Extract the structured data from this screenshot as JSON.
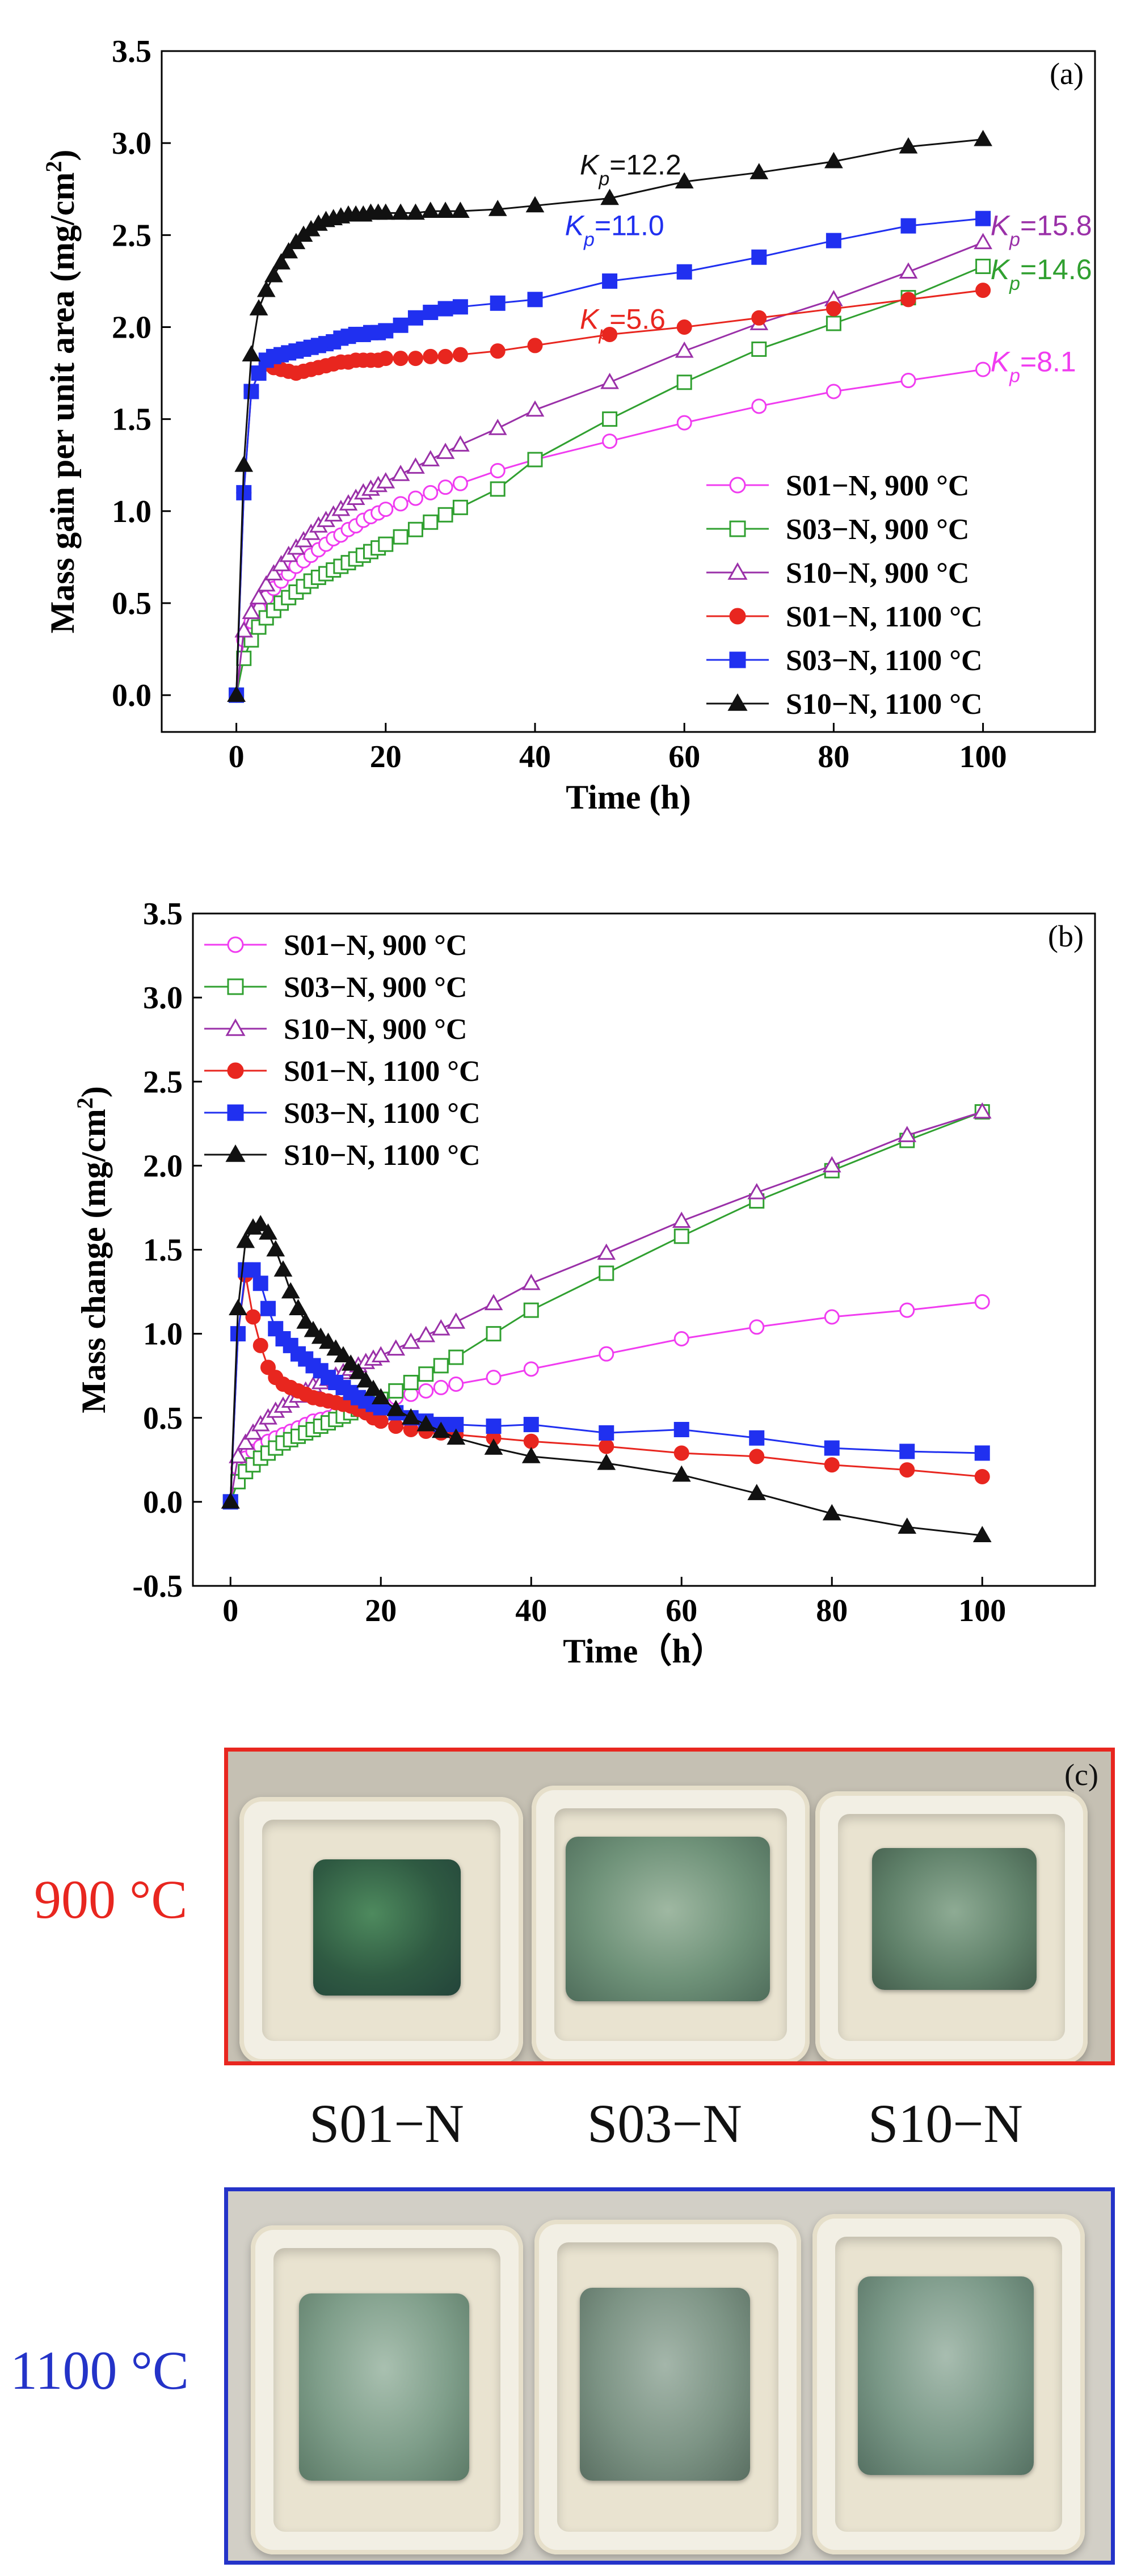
{
  "chart_data": [
    {
      "type": "line",
      "panel_label": "(a)",
      "xlabel": "Time (h)",
      "ylabel": "Mass gain per unit area (mg/cm",
      "ylabel_sup": "2",
      "ylabel_close": ")",
      "xlim": [
        -10,
        115
      ],
      "ylim": [
        -0.2,
        3.5
      ],
      "xticks": [
        "0",
        "20",
        "40",
        "60",
        "80",
        "100"
      ],
      "yticks": [
        "0.0",
        "0.5",
        "1.0",
        "1.5",
        "2.0",
        "2.5",
        "3.0",
        "3.5"
      ],
      "legend_position": "lower-right",
      "series": [
        {
          "name": "S01−N, 900 °C",
          "color": "#f03cf0",
          "marker": "circle-open",
          "x": [
            0,
            1,
            2,
            3,
            4,
            5,
            6,
            7,
            8,
            9,
            10,
            11,
            12,
            13,
            14,
            15,
            16,
            17,
            18,
            19,
            20,
            22,
            24,
            26,
            28,
            30,
            35,
            40,
            50,
            60,
            70,
            80,
            90,
            100
          ],
          "y": [
            0,
            0.3,
            0.4,
            0.47,
            0.53,
            0.58,
            0.62,
            0.66,
            0.7,
            0.73,
            0.76,
            0.79,
            0.82,
            0.85,
            0.87,
            0.9,
            0.92,
            0.95,
            0.97,
            0.99,
            1.01,
            1.04,
            1.07,
            1.1,
            1.13,
            1.15,
            1.22,
            1.28,
            1.38,
            1.48,
            1.57,
            1.65,
            1.71,
            1.77
          ]
        },
        {
          "name": "S03−N, 900 °C",
          "color": "#30a030",
          "marker": "square-open",
          "x": [
            0,
            1,
            2,
            3,
            4,
            5,
            6,
            7,
            8,
            9,
            10,
            11,
            12,
            13,
            14,
            15,
            16,
            17,
            18,
            19,
            20,
            22,
            24,
            26,
            28,
            30,
            35,
            40,
            50,
            60,
            70,
            80,
            90,
            100
          ],
          "y": [
            0,
            0.2,
            0.3,
            0.37,
            0.42,
            0.46,
            0.5,
            0.53,
            0.56,
            0.59,
            0.62,
            0.64,
            0.66,
            0.68,
            0.7,
            0.72,
            0.74,
            0.76,
            0.78,
            0.8,
            0.82,
            0.86,
            0.9,
            0.94,
            0.98,
            1.02,
            1.12,
            1.28,
            1.5,
            1.7,
            1.88,
            2.02,
            2.16,
            2.33
          ]
        },
        {
          "name": "S10−N, 900 °C",
          "color": "#9a30a8",
          "marker": "triangle-open",
          "x": [
            0,
            1,
            2,
            3,
            4,
            5,
            6,
            7,
            8,
            9,
            10,
            11,
            12,
            13,
            14,
            15,
            16,
            17,
            18,
            19,
            20,
            22,
            24,
            26,
            28,
            30,
            35,
            40,
            50,
            60,
            70,
            80,
            90,
            100
          ],
          "y": [
            0,
            0.35,
            0.45,
            0.53,
            0.6,
            0.66,
            0.71,
            0.76,
            0.8,
            0.84,
            0.88,
            0.92,
            0.95,
            0.98,
            1.01,
            1.04,
            1.07,
            1.1,
            1.12,
            1.14,
            1.16,
            1.2,
            1.24,
            1.28,
            1.32,
            1.36,
            1.45,
            1.55,
            1.7,
            1.87,
            2.02,
            2.15,
            2.3,
            2.46
          ]
        },
        {
          "name": "S01−N, 1100 °C",
          "color": "#e8261f",
          "marker": "circle-filled",
          "x": [
            0,
            1,
            2,
            3,
            4,
            5,
            6,
            7,
            8,
            9,
            10,
            11,
            12,
            13,
            14,
            15,
            16,
            17,
            18,
            19,
            20,
            22,
            24,
            26,
            28,
            30,
            35,
            40,
            50,
            60,
            70,
            80,
            90,
            100
          ],
          "y": [
            0,
            1.1,
            1.65,
            1.75,
            1.8,
            1.78,
            1.77,
            1.76,
            1.75,
            1.76,
            1.77,
            1.78,
            1.79,
            1.8,
            1.81,
            1.81,
            1.82,
            1.82,
            1.82,
            1.82,
            1.83,
            1.83,
            1.83,
            1.84,
            1.84,
            1.85,
            1.87,
            1.9,
            1.96,
            2.0,
            2.05,
            2.1,
            2.15,
            2.2
          ]
        },
        {
          "name": "S03−N, 1100 °C",
          "color": "#2030f0",
          "marker": "square-filled",
          "x": [
            0,
            1,
            2,
            3,
            4,
            5,
            6,
            7,
            8,
            9,
            10,
            11,
            12,
            13,
            14,
            15,
            16,
            17,
            18,
            19,
            20,
            22,
            24,
            26,
            28,
            30,
            35,
            40,
            50,
            60,
            70,
            80,
            90,
            100
          ],
          "y": [
            0,
            1.1,
            1.65,
            1.75,
            1.82,
            1.84,
            1.85,
            1.86,
            1.87,
            1.88,
            1.89,
            1.9,
            1.91,
            1.92,
            1.94,
            1.95,
            1.96,
            1.96,
            1.97,
            1.97,
            1.98,
            2.01,
            2.05,
            2.08,
            2.1,
            2.11,
            2.13,
            2.15,
            2.25,
            2.3,
            2.38,
            2.47,
            2.55,
            2.59
          ]
        },
        {
          "name": "S10−N, 1100 °C",
          "color": "#111111",
          "marker": "triangle-filled",
          "x": [
            0,
            1,
            2,
            3,
            4,
            5,
            6,
            7,
            8,
            9,
            10,
            11,
            12,
            13,
            14,
            15,
            16,
            17,
            18,
            19,
            20,
            22,
            24,
            26,
            28,
            30,
            35,
            40,
            50,
            60,
            70,
            80,
            90,
            100
          ],
          "y": [
            0,
            1.25,
            1.85,
            2.1,
            2.2,
            2.28,
            2.35,
            2.41,
            2.46,
            2.5,
            2.53,
            2.56,
            2.58,
            2.59,
            2.6,
            2.61,
            2.61,
            2.61,
            2.62,
            2.62,
            2.62,
            2.62,
            2.62,
            2.63,
            2.63,
            2.63,
            2.64,
            2.66,
            2.7,
            2.79,
            2.84,
            2.9,
            2.98,
            3.02
          ]
        }
      ],
      "annotations": [
        {
          "series": 5,
          "k": "K",
          "sub": "p",
          "value": "=12.2",
          "x": 46,
          "y": 2.83,
          "color": "#111111"
        },
        {
          "series": 4,
          "k": "K",
          "sub": "p",
          "value": "=11.0",
          "x": 44,
          "y": 2.5,
          "color": "#2030f0"
        },
        {
          "series": 3,
          "k": "K",
          "sub": "p",
          "value": "=5.6",
          "x": 46,
          "y": 1.99,
          "color": "#e8261f"
        },
        {
          "series": 2,
          "k": "K",
          "sub": "p",
          "value": "=15.8",
          "x": 101,
          "y": 2.5,
          "color": "#9a30a8"
        },
        {
          "series": 1,
          "k": "K",
          "sub": "p",
          "value": "=14.6",
          "x": 101,
          "y": 2.26,
          "color": "#30a030"
        },
        {
          "series": 0,
          "k": "K",
          "sub": "p",
          "value": "=8.1",
          "x": 101,
          "y": 1.76,
          "color": "#f03cf0"
        }
      ]
    },
    {
      "type": "line",
      "panel_label": "(b)",
      "xlabel": "Time（h）",
      "ylabel": "Mass change (mg/cm",
      "ylabel_sup": "2",
      "ylabel_close": ")",
      "xlim": [
        -5,
        115
      ],
      "ylim": [
        -0.5,
        3.5
      ],
      "xticks": [
        "0",
        "20",
        "40",
        "60",
        "80",
        "100"
      ],
      "yticks": [
        "-0.5",
        "0.0",
        "0.5",
        "1.0",
        "1.5",
        "2.0",
        "2.5",
        "3.0",
        "3.5"
      ],
      "legend_position": "top-left",
      "series": [
        {
          "name": "S01−N, 900 °C",
          "color": "#f03cf0",
          "marker": "circle-open",
          "x": [
            0,
            1,
            2,
            3,
            4,
            5,
            6,
            7,
            8,
            9,
            10,
            11,
            12,
            13,
            14,
            15,
            16,
            17,
            18,
            19,
            20,
            22,
            24,
            26,
            28,
            30,
            35,
            40,
            50,
            60,
            70,
            80,
            90,
            100
          ],
          "y": [
            0,
            0.2,
            0.26,
            0.3,
            0.33,
            0.36,
            0.38,
            0.4,
            0.42,
            0.44,
            0.46,
            0.48,
            0.49,
            0.5,
            0.52,
            0.53,
            0.55,
            0.56,
            0.57,
            0.58,
            0.6,
            0.62,
            0.64,
            0.66,
            0.68,
            0.7,
            0.74,
            0.79,
            0.88,
            0.97,
            1.04,
            1.1,
            1.14,
            1.19
          ]
        },
        {
          "name": "S03−N, 900 °C",
          "color": "#30a030",
          "marker": "square-open",
          "x": [
            0,
            1,
            2,
            3,
            4,
            5,
            6,
            7,
            8,
            9,
            10,
            11,
            12,
            13,
            14,
            15,
            16,
            17,
            18,
            19,
            20,
            22,
            24,
            26,
            28,
            30,
            35,
            40,
            50,
            60,
            70,
            80,
            90,
            100
          ],
          "y": [
            0,
            0.12,
            0.18,
            0.22,
            0.26,
            0.29,
            0.32,
            0.35,
            0.37,
            0.39,
            0.41,
            0.43,
            0.45,
            0.47,
            0.49,
            0.51,
            0.53,
            0.55,
            0.57,
            0.59,
            0.61,
            0.66,
            0.71,
            0.76,
            0.81,
            0.86,
            1.0,
            1.14,
            1.36,
            1.58,
            1.79,
            1.97,
            2.15,
            2.32
          ]
        },
        {
          "name": "S10−N, 900 °C",
          "color": "#9a30a8",
          "marker": "triangle-open",
          "x": [
            0,
            1,
            2,
            3,
            4,
            5,
            6,
            7,
            8,
            9,
            10,
            11,
            12,
            13,
            14,
            15,
            16,
            17,
            18,
            19,
            20,
            22,
            24,
            26,
            28,
            30,
            35,
            40,
            50,
            60,
            70,
            80,
            90,
            100
          ],
          "y": [
            0,
            0.27,
            0.35,
            0.41,
            0.46,
            0.5,
            0.54,
            0.57,
            0.6,
            0.63,
            0.66,
            0.69,
            0.71,
            0.73,
            0.75,
            0.77,
            0.79,
            0.81,
            0.83,
            0.85,
            0.87,
            0.91,
            0.95,
            0.99,
            1.03,
            1.07,
            1.18,
            1.3,
            1.48,
            1.67,
            1.84,
            2.0,
            2.18,
            2.32
          ]
        },
        {
          "name": "S01−N, 1100 °C",
          "color": "#e8261f",
          "marker": "circle-filled",
          "x": [
            0,
            1,
            2,
            3,
            4,
            5,
            6,
            7,
            8,
            9,
            10,
            11,
            12,
            13,
            14,
            15,
            16,
            17,
            18,
            19,
            20,
            22,
            24,
            26,
            28,
            30,
            35,
            40,
            50,
            60,
            70,
            80,
            90,
            100
          ],
          "y": [
            0,
            1.0,
            1.35,
            1.1,
            0.93,
            0.8,
            0.74,
            0.7,
            0.68,
            0.66,
            0.64,
            0.62,
            0.61,
            0.6,
            0.59,
            0.58,
            0.57,
            0.55,
            0.53,
            0.5,
            0.48,
            0.45,
            0.43,
            0.42,
            0.41,
            0.4,
            0.38,
            0.36,
            0.33,
            0.29,
            0.27,
            0.22,
            0.19,
            0.15
          ]
        },
        {
          "name": "S03−N, 1100 °C",
          "color": "#2030f0",
          "marker": "square-filled",
          "x": [
            0,
            1,
            2,
            3,
            4,
            5,
            6,
            7,
            8,
            9,
            10,
            11,
            12,
            13,
            14,
            15,
            16,
            17,
            18,
            19,
            20,
            22,
            24,
            26,
            28,
            30,
            35,
            40,
            50,
            60,
            70,
            80,
            90,
            100
          ],
          "y": [
            0,
            1.0,
            1.38,
            1.38,
            1.3,
            1.15,
            1.03,
            0.97,
            0.93,
            0.88,
            0.85,
            0.81,
            0.78,
            0.74,
            0.71,
            0.68,
            0.65,
            0.62,
            0.6,
            0.58,
            0.56,
            0.53,
            0.5,
            0.48,
            0.46,
            0.46,
            0.45,
            0.46,
            0.41,
            0.43,
            0.38,
            0.32,
            0.3,
            0.29
          ]
        },
        {
          "name": "S10−N, 1100 °C",
          "color": "#111111",
          "marker": "triangle-filled",
          "x": [
            0,
            1,
            2,
            3,
            4,
            5,
            6,
            7,
            8,
            9,
            10,
            11,
            12,
            13,
            14,
            15,
            16,
            17,
            18,
            19,
            20,
            22,
            24,
            26,
            28,
            30,
            35,
            40,
            50,
            60,
            70,
            80,
            90,
            100
          ],
          "y": [
            0,
            1.15,
            1.55,
            1.63,
            1.65,
            1.6,
            1.5,
            1.38,
            1.25,
            1.15,
            1.07,
            1.02,
            0.98,
            0.95,
            0.91,
            0.87,
            0.82,
            0.77,
            0.72,
            0.67,
            0.62,
            0.55,
            0.5,
            0.46,
            0.42,
            0.38,
            0.32,
            0.27,
            0.23,
            0.16,
            0.05,
            -0.07,
            -0.15,
            -0.2
          ]
        }
      ]
    }
  ],
  "photos": {
    "panel_label": "(c)",
    "row_900_label": "900 °C",
    "row_1100_label": "1100 °C",
    "samples": [
      "S01−N",
      "S03−N",
      "S10−N"
    ],
    "colors": {
      "border_900": "#e8261f",
      "border_1100": "#2433c8"
    }
  }
}
